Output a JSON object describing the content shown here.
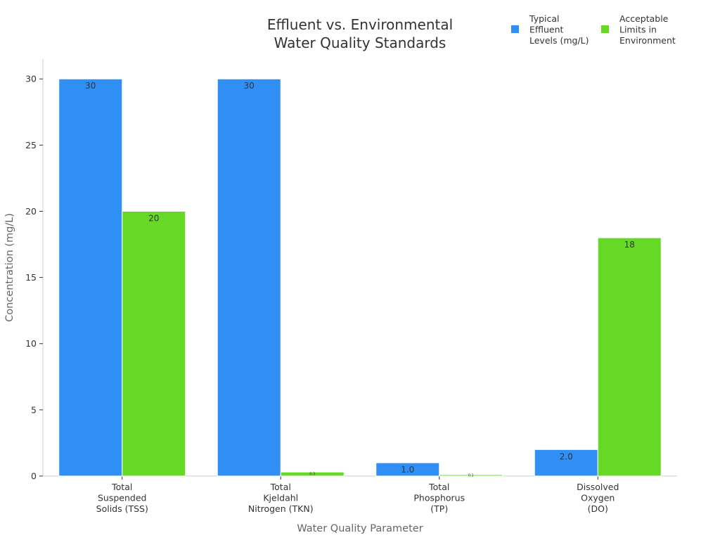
{
  "chart_data": {
    "type": "bar",
    "title": [
      "Effluent vs. Environmental",
      "Water Quality Standards"
    ],
    "xlabel": "Water Quality Parameter",
    "ylabel": "Concentration (mg/L)",
    "ylim": [
      0,
      31.5
    ],
    "yticks": [
      0,
      5,
      10,
      15,
      20,
      25,
      30
    ],
    "grid": false,
    "legend_position": "top-right",
    "categories": [
      [
        "Total",
        "Suspended",
        "Solids (TSS)"
      ],
      [
        "Total",
        "Kjeldahl",
        "Nitrogen (TKN)"
      ],
      [
        "Total",
        "Phosphorus",
        "(TP)"
      ],
      [
        "Dissolved",
        "Oxygen",
        "(DO)"
      ]
    ],
    "series": [
      {
        "name": [
          "Typical",
          "Effluent",
          "Levels (mg/L)"
        ],
        "color": "#2f8ff5",
        "values": [
          30,
          30,
          1.0,
          2.0
        ],
        "labels": [
          "30",
          "30",
          "1.0",
          "2.0"
        ]
      },
      {
        "name": [
          "Acceptable",
          "Limits in",
          "Environment"
        ],
        "color": "#66d926",
        "values": [
          20,
          0.3,
          0.1,
          18
        ],
        "labels": [
          "20",
          "0.3",
          "0.1",
          "18"
        ]
      }
    ]
  }
}
